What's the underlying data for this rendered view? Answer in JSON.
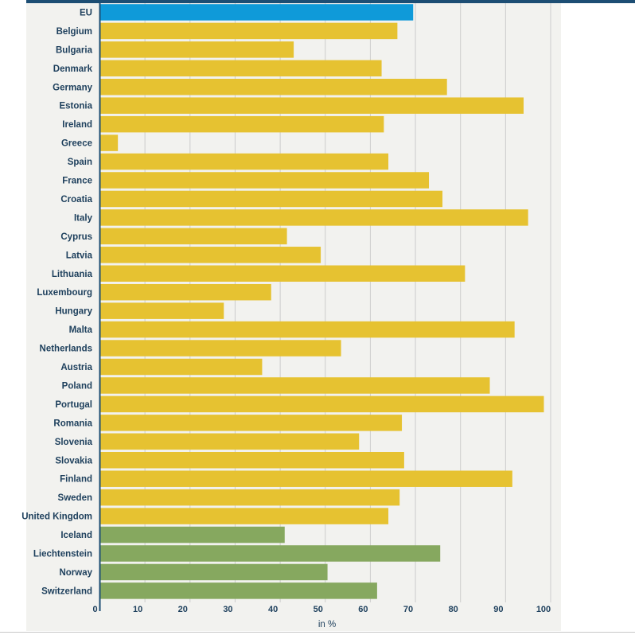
{
  "chart_data": {
    "type": "bar",
    "orientation": "horizontal",
    "xlabel": "in %",
    "xlim": [
      0,
      100
    ],
    "xticks": [
      0,
      10,
      20,
      30,
      40,
      50,
      60,
      70,
      80,
      90,
      100
    ],
    "grid": true,
    "categories": [
      "EU",
      "Belgium",
      "Bulgaria",
      "Denmark",
      "Germany",
      "Estonia",
      "Ireland",
      "Greece",
      "Spain",
      "France",
      "Croatia",
      "Italy",
      "Cyprus",
      "Latvia",
      "Lithuania",
      "Luxembourg",
      "Hungary",
      "Malta",
      "Netherlands",
      "Austria",
      "Poland",
      "Portugal",
      "Romania",
      "Slovenia",
      "Slovakia",
      "Finland",
      "Sweden",
      "United Kingdom",
      "Iceland",
      "Liechtenstein",
      "Norway",
      "Switzerland"
    ],
    "values": [
      69.5,
      66,
      43,
      62.5,
      77,
      94,
      63,
      4,
      64,
      73,
      76,
      95,
      41.5,
      49,
      81,
      38,
      27.5,
      92,
      53.5,
      36,
      86.5,
      98.5,
      67,
      57.5,
      67.5,
      91.5,
      66.5,
      64,
      41,
      75.5,
      50.5,
      61.5
    ],
    "groups": [
      "eu",
      "member",
      "member",
      "member",
      "member",
      "member",
      "member",
      "member",
      "member",
      "member",
      "member",
      "member",
      "member",
      "member",
      "member",
      "member",
      "member",
      "member",
      "member",
      "member",
      "member",
      "member",
      "member",
      "member",
      "member",
      "member",
      "member",
      "member",
      "efta",
      "efta",
      "efta",
      "efta"
    ],
    "colors": {
      "eu": "#0f9ad9",
      "member": "#e6c231",
      "efta": "#86a85f"
    },
    "axis_color": "#1d4e74",
    "label_color": "#1d3f5c",
    "grid_color": "#cccccc"
  }
}
